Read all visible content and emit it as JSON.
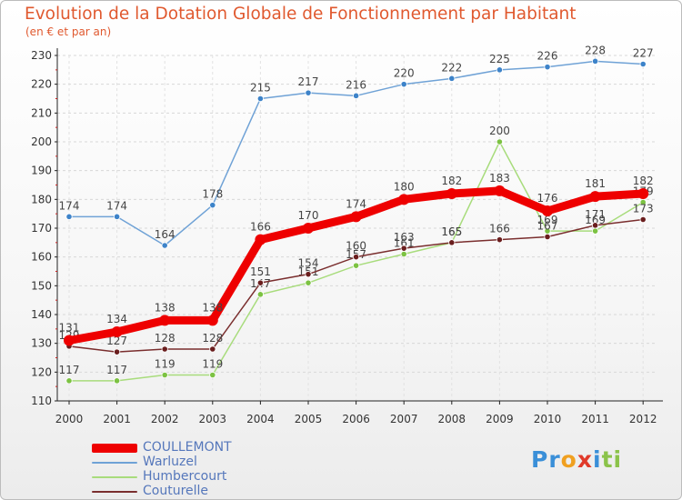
{
  "header": {
    "title": "Evolution de la Dotation Globale de Fonctionnement par Habitant",
    "subtitle": "(en € et par an)"
  },
  "logo": {
    "parts": [
      "Pr",
      "o",
      "x",
      "i",
      "ti"
    ],
    "colors": [
      "#3a8fd8",
      "#f0a020",
      "#e03a2a",
      "#3a8fd8",
      "#8bc34a"
    ]
  },
  "chart_data": {
    "type": "line",
    "title": "Evolution de la Dotation Globale de Fonctionnement par Habitant",
    "subtitle": "(en € et par an)",
    "xlabel": "",
    "ylabel": "",
    "ylim": [
      110,
      230
    ],
    "yticks": [
      110,
      120,
      130,
      140,
      150,
      160,
      170,
      180,
      190,
      200,
      210,
      220,
      230
    ],
    "grid": true,
    "categories": [
      "2000",
      "2001",
      "2002",
      "2003",
      "2004",
      "2005",
      "2006",
      "2007",
      "2008",
      "2009",
      "2010",
      "2011",
      "2012"
    ],
    "legend_position": "bottom-left",
    "series": [
      {
        "name": "Warluzel",
        "color": "#6fa2d6",
        "marker": "#3d83c9",
        "values": [
          174,
          174,
          164,
          178,
          215,
          217,
          216,
          220,
          222,
          225,
          226,
          228,
          227
        ],
        "labels": [
          "174",
          "174",
          "164",
          "178",
          "215",
          "217",
          "216",
          "220",
          "222",
          "225",
          "226",
          "228",
          "227"
        ]
      },
      {
        "name": "Humbercourt",
        "color": "#a8dc7c",
        "marker": "#7cc242",
        "values": [
          117,
          117,
          119,
          119,
          147,
          151,
          157,
          161,
          165,
          200,
          169,
          169,
          179
        ],
        "labels": [
          "117",
          "117",
          "119",
          "119",
          "147",
          "151",
          "157",
          "161",
          "165",
          "200",
          "169",
          "169",
          "179"
        ]
      },
      {
        "name": "Couturelle",
        "color": "#7a2e2e",
        "marker": "#6a1e1e",
        "values": [
          129,
          127,
          128,
          128,
          151,
          154,
          160,
          163,
          165,
          166,
          167,
          171,
          173
        ],
        "labels": [
          "129",
          "127",
          "128",
          "128",
          "151",
          "154",
          "160",
          "163",
          "165",
          "166",
          "167",
          "171",
          "173"
        ]
      },
      {
        "name": "COULLEMONT",
        "color": "#ee0000",
        "marker": "#ee0000",
        "values": [
          131,
          134,
          138,
          138,
          166,
          170,
          174,
          180,
          182,
          183,
          176,
          181,
          182
        ],
        "labels": [
          "131",
          "134",
          "138",
          "138",
          "166",
          "170",
          "174",
          "180",
          "182",
          "183",
          "176",
          "181",
          "182"
        ]
      }
    ]
  },
  "legend": [
    {
      "label": "COULLEMONT",
      "color": "#ee0000"
    },
    {
      "label": "Warluzel",
      "color": "#6fa2d6"
    },
    {
      "label": "Humbercourt",
      "color": "#a8dc7c"
    },
    {
      "label": "Couturelle",
      "color": "#7a2e2e"
    }
  ]
}
